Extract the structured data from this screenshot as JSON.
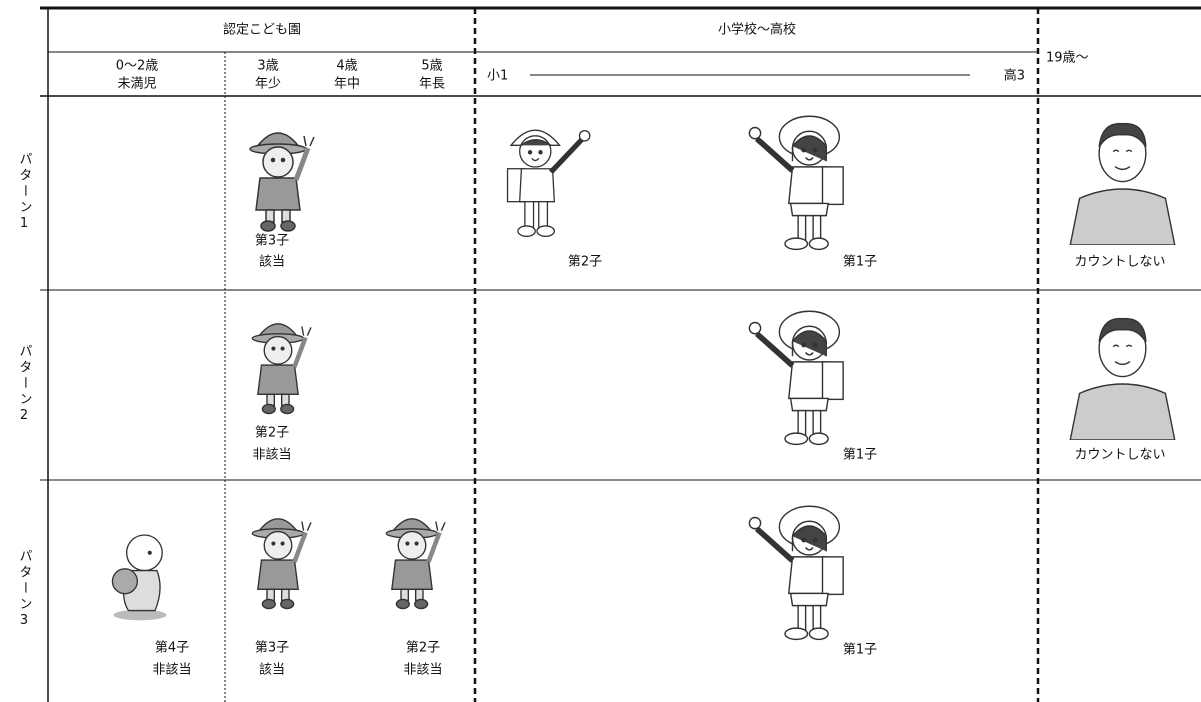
{
  "header": {
    "kindergarten": "認定こども園",
    "school": "小学校～高校",
    "adult": "19歳～",
    "age_0_2": {
      "age": "0～2歳",
      "label": "未満児"
    },
    "age_3": {
      "age": "3歳",
      "label": "年少"
    },
    "age_4": {
      "age": "4歳",
      "label": "年中"
    },
    "age_5": {
      "age": "5歳",
      "label": "年長"
    },
    "school_start": "小1",
    "school_end": "高3"
  },
  "patterns": [
    {
      "label": "パターン1",
      "children": [
        {
          "order": "第3子",
          "status": "該当"
        },
        {
          "order": "第2子"
        },
        {
          "order": "第1子"
        },
        {
          "note": "カウントしない"
        }
      ]
    },
    {
      "label": "パターン2",
      "children": [
        {
          "order": "第2子",
          "status": "非該当"
        },
        {
          "order": "第1子"
        },
        {
          "note": "カウントしない"
        }
      ]
    },
    {
      "label": "パターン3",
      "children": [
        {
          "order": "第4子",
          "status": "非該当"
        },
        {
          "order": "第3子",
          "status": "該当"
        },
        {
          "order": "第2子",
          "status": "非該当"
        },
        {
          "order": "第1子"
        }
      ]
    }
  ]
}
